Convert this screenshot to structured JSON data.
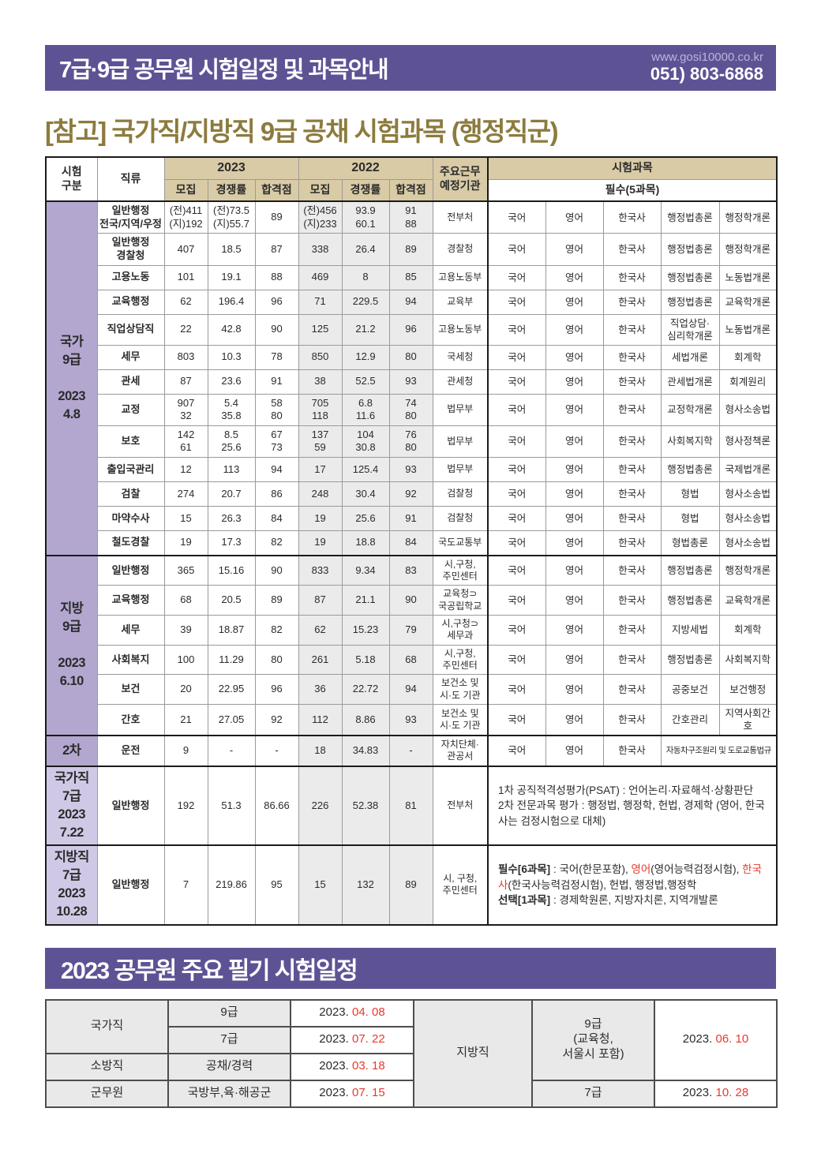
{
  "colors": {
    "banner_purple": "#5d5394",
    "heading_gold": "#8c7b3e",
    "header_tan": "#d9cba6",
    "sidebar_purple": "#b3a7d0",
    "sidebar_light_purple": "#d0c9e6",
    "accent_red": "#e8392b"
  },
  "header": {
    "title": "7급·9급 공무원 시험일정 및 과목안내",
    "website": "www.gosi10000.co.kr",
    "phone": "051) 803-6868"
  },
  "section_title": "[참고] 국가직/지방직 9급 공채 시험과목 (행정직군)",
  "exam_table": {
    "col_headers": {
      "exam_type": "시험\n구분",
      "series": "직류",
      "y2023": "2023",
      "y2022": "2022",
      "recruit": "모집",
      "ratio": "경쟁률",
      "pass": "합격점",
      "agency": "주요근무\n예정기관",
      "subjects": "시험과목",
      "required": "필수(5과목)"
    },
    "groups": [
      {
        "id": "national-9",
        "label": "국가\n9급\n\n2023\n4.8",
        "shade": "purple",
        "rows": [
          {
            "series": "일반행정\n전국/지역/우정",
            "v2023": [
              "(전)411\n(지)192",
              "(전)73.5\n(지)55.7",
              "89"
            ],
            "v2022": [
              "(전)456\n(지)233",
              "93.9\n60.1",
              "91\n88"
            ],
            "agency": "전부처",
            "subjects": [
              "국어",
              "영어",
              "한국사",
              "행정법총론",
              "행정학개론"
            ]
          },
          {
            "series": "일반행정\n경찰청",
            "v2023": [
              "407",
              "18.5",
              "87"
            ],
            "v2022": [
              "338",
              "26.4",
              "89"
            ],
            "agency": "경찰청",
            "subjects": [
              "국어",
              "영어",
              "한국사",
              "행정법총론",
              "행정학개론"
            ]
          },
          {
            "series": "고용노동",
            "v2023": [
              "101",
              "19.1",
              "88"
            ],
            "v2022": [
              "469",
              "8",
              "85"
            ],
            "agency": "고용노동부",
            "subjects": [
              "국어",
              "영어",
              "한국사",
              "행정법총론",
              "노동법개론"
            ]
          },
          {
            "series": "교육행정",
            "v2023": [
              "62",
              "196.4",
              "96"
            ],
            "v2022": [
              "71",
              "229.5",
              "94"
            ],
            "agency": "교육부",
            "subjects": [
              "국어",
              "영어",
              "한국사",
              "행정법총론",
              "교육학개론"
            ]
          },
          {
            "series": "직업상담직",
            "v2023": [
              "22",
              "42.8",
              "90"
            ],
            "v2022": [
              "125",
              "21.2",
              "96"
            ],
            "agency": "고용노동부",
            "subjects": [
              "국어",
              "영어",
              "한국사",
              "직업상담·\n심리학개론",
              "노동법개론"
            ]
          },
          {
            "series": "세무",
            "v2023": [
              "803",
              "10.3",
              "78"
            ],
            "v2022": [
              "850",
              "12.9",
              "80"
            ],
            "agency": "국세청",
            "subjects": [
              "국어",
              "영어",
              "한국사",
              "세법개론",
              "회계학"
            ]
          },
          {
            "series": "관세",
            "v2023": [
              "87",
              "23.6",
              "91"
            ],
            "v2022": [
              "38",
              "52.5",
              "93"
            ],
            "agency": "관세청",
            "subjects": [
              "국어",
              "영어",
              "한국사",
              "관세법개론",
              "회계원리"
            ]
          },
          {
            "series": "교정",
            "v2023": [
              "907\n32",
              "5.4\n35.8",
              "58\n80"
            ],
            "v2022": [
              "705\n118",
              "6.8\n11.6",
              "74\n80"
            ],
            "agency": "법무부",
            "subjects": [
              "국어",
              "영어",
              "한국사",
              "교정학개론",
              "형사소송법"
            ]
          },
          {
            "series": "보호",
            "v2023": [
              "142\n61",
              "8.5\n25.6",
              "67\n73"
            ],
            "v2022": [
              "137\n59",
              "104\n30.8",
              "76\n80"
            ],
            "agency": "법무부",
            "subjects": [
              "국어",
              "영어",
              "한국사",
              "사회복지학",
              "형사정책론"
            ]
          },
          {
            "series": "출입국관리",
            "v2023": [
              "12",
              "113",
              "94"
            ],
            "v2022": [
              "17",
              "125.4",
              "93"
            ],
            "agency": "법무부",
            "subjects": [
              "국어",
              "영어",
              "한국사",
              "행정법총론",
              "국제법개론"
            ]
          },
          {
            "series": "검찰",
            "v2023": [
              "274",
              "20.7",
              "86"
            ],
            "v2022": [
              "248",
              "30.4",
              "92"
            ],
            "agency": "검찰청",
            "subjects": [
              "국어",
              "영어",
              "한국사",
              "형법",
              "형사소송법"
            ]
          },
          {
            "series": "마약수사",
            "v2023": [
              "15",
              "26.3",
              "84"
            ],
            "v2022": [
              "19",
              "25.6",
              "91"
            ],
            "agency": "검찰청",
            "subjects": [
              "국어",
              "영어",
              "한국사",
              "형법",
              "형사소송법"
            ]
          },
          {
            "series": "철도경찰",
            "v2023": [
              "19",
              "17.3",
              "82"
            ],
            "v2022": [
              "19",
              "18.8",
              "84"
            ],
            "agency": "국도교통부",
            "subjects": [
              "국어",
              "영어",
              "한국사",
              "형법총론",
              "형사소송법"
            ]
          }
        ]
      },
      {
        "id": "local-9",
        "label": "지방\n9급\n\n2023\n6.10",
        "shade": "purple",
        "rows": [
          {
            "series": "일반행정",
            "v2023": [
              "365",
              "15.16",
              "90"
            ],
            "v2022": [
              "833",
              "9.34",
              "83"
            ],
            "agency": "시,구청,\n주민센터",
            "subjects": [
              "국어",
              "영어",
              "한국사",
              "행정법총론",
              "행정학개론"
            ]
          },
          {
            "series": "교육행정",
            "v2023": [
              "68",
              "20.5",
              "89"
            ],
            "v2022": [
              "87",
              "21.1",
              "90"
            ],
            "agency": "교육청⊃\n국공립학교",
            "subjects": [
              "국어",
              "영어",
              "한국사",
              "행정법총론",
              "교육학개론"
            ]
          },
          {
            "series": "세무",
            "v2023": [
              "39",
              "18.87",
              "82"
            ],
            "v2022": [
              "62",
              "15.23",
              "79"
            ],
            "agency": "시,구청⊃\n세무과",
            "subjects": [
              "국어",
              "영어",
              "한국사",
              "지방세법",
              "회계학"
            ]
          },
          {
            "series": "사회복지",
            "v2023": [
              "100",
              "11.29",
              "80"
            ],
            "v2022": [
              "261",
              "5.18",
              "68"
            ],
            "agency": "시,구청,\n주민센터",
            "subjects": [
              "국어",
              "영어",
              "한국사",
              "행정법총론",
              "사회복지학"
            ]
          },
          {
            "series": "보건",
            "v2023": [
              "20",
              "22.95",
              "96"
            ],
            "v2022": [
              "36",
              "22.72",
              "94"
            ],
            "agency": "보건소 및\n시·도 기관",
            "subjects": [
              "국어",
              "영어",
              "한국사",
              "공중보건",
              "보건행정"
            ]
          },
          {
            "series": "간호",
            "v2023": [
              "21",
              "27.05",
              "92"
            ],
            "v2022": [
              "112",
              "8.86",
              "93"
            ],
            "agency": "보건소 및\n시·도 기관",
            "subjects": [
              "국어",
              "영어",
              "한국사",
              "간호관리",
              "지역사회간호"
            ]
          }
        ]
      },
      {
        "id": "second-round",
        "label": "2차",
        "shade": "purple",
        "rows": [
          {
            "series": "운전",
            "v2023": [
              "9",
              "-",
              "-"
            ],
            "v2022": [
              "18",
              "34.83",
              "-"
            ],
            "agency": "자치단체·\n관공서",
            "subjects": [
              "국어",
              "영어",
              "한국사",
              {
                "text": "자동차구조원리 및 도로교통법규",
                "span": 2,
                "small": true
              }
            ]
          }
        ]
      },
      {
        "id": "national-7",
        "label": "국가직\n7급\n2023\n7.22",
        "shade": "light",
        "rows": [
          {
            "series": "일반행정",
            "v2023": [
              "192",
              "51.3",
              "86.66"
            ],
            "v2022": [
              "226",
              "52.38",
              "81"
            ],
            "agency": "전부처",
            "subjects_rich": [
              [
                {
                  "t": "1차 공직적격성평가(PSAT) : 언어논리·자료해석·상황판단"
                }
              ],
              [
                {
                  "t": "2차 전문과목 평가 : 행정법, 행정학, 헌법, 경제학 (영어, 한국사는 검정시험으로 대체)"
                }
              ]
            ]
          }
        ]
      },
      {
        "id": "local-7",
        "label": "지방직\n7급\n2023\n10.28",
        "shade": "light",
        "rows": [
          {
            "series": "일반행정",
            "v2023": [
              "7",
              "219.86",
              "95"
            ],
            "v2022": [
              "15",
              "132",
              "89"
            ],
            "agency": "시, 구청,\n주민센터",
            "subjects_rich": [
              [
                {
                  "t": "필수[6과목]",
                  "b": true
                },
                {
                  "t": " : 국어(한문포함), "
                },
                {
                  "t": "영어",
                  "r": true
                },
                {
                  "t": "(영어능력검정시험), "
                },
                {
                  "t": "한국사",
                  "r": true
                },
                {
                  "t": "(한국사능력검정시험), 헌법, 행정법,행정학"
                }
              ],
              [
                {
                  "t": "선택[1과목]",
                  "b": true
                },
                {
                  "t": " : 경제학원론, 지방자치론, 지역개발론"
                }
              ]
            ]
          }
        ]
      }
    ]
  },
  "schedule": {
    "banner": "2023 공무원 주요 필기 시험일정",
    "national": {
      "category": "국가직",
      "g9": "9급",
      "g9_year": "2023.",
      "g9_md": "04. 08",
      "g7": "7급",
      "g7_year": "2023.",
      "g7_md": "07. 22"
    },
    "fire": {
      "category": "소방직",
      "level": "공채/경력",
      "year": "2023.",
      "md": "03. 18"
    },
    "military": {
      "category": "군무원",
      "level": "국방부,육·해공군",
      "year": "2023.",
      "md": "07. 15"
    },
    "local": {
      "category": "지방직",
      "g9": "9급\n(교육청,\n서울시 포함)",
      "g9_year": "2023.",
      "g9_md": "06. 10",
      "g7": "7급",
      "g7_year": "2023.",
      "g7_md": "10. 28"
    }
  }
}
